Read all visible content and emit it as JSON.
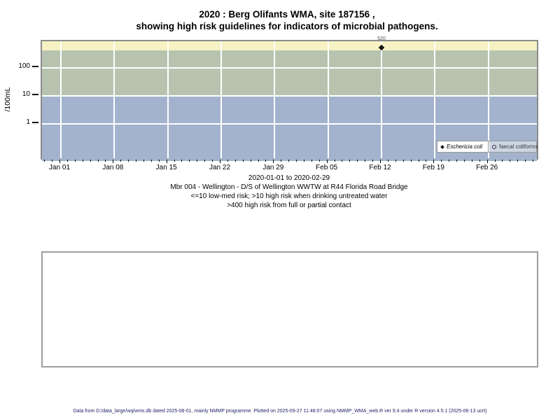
{
  "title": {
    "line1": "2020 : Berg Olifants WMA, site 187156 ,",
    "line2": "showing high risk guidelines for indicators of microbial pathogens."
  },
  "chart_data": {
    "type": "scatter",
    "y_scale": "log",
    "ylabel": "/100mL",
    "xlabel": "",
    "grid": true,
    "legend_position": "bottom-right",
    "x_range": [
      "2019-12-30",
      "2020-03-03"
    ],
    "x_tick_labels": [
      "Jan 01",
      "Jan 08",
      "Jan 15",
      "Jan 22",
      "Jan 29",
      "Feb 05",
      "Feb 12",
      "Feb 19",
      "Feb 26"
    ],
    "y_tick_labels": [
      "100",
      "10",
      "1"
    ],
    "y_tick_values": [
      100,
      10,
      1
    ],
    "series": [
      {
        "name": "Eschericia coli",
        "marker": "filled-diamond",
        "points": [
          {
            "date": "2020-02-12",
            "value": 520,
            "label": "520"
          }
        ]
      },
      {
        "name": "faecal coliforms",
        "marker": "open-circle",
        "points": []
      }
    ],
    "bands": [
      {
        "label": ">400 high risk from full or partial contact",
        "y_from": 400,
        "y_to": 900,
        "color": "#f7f2c4"
      },
      {
        "label": ">10 high risk when drinking untreated water",
        "y_from": 10,
        "y_to": 400,
        "color": "#b7c3af"
      },
      {
        "label": "<=10 low-med risk",
        "y_from": 0.04,
        "y_to": 10,
        "color": "#a3b3cd"
      }
    ]
  },
  "subtitle_lines": [
    "2020-01-01 to 2020-02-29",
    "Mbr 004 - Wellington - D/S of Wellington WWTW at R44 Florida Road Bridge",
    "<=10 low-med risk; >10 high risk when drinking untreated water",
    ">400 high risk from full or partial contact"
  ],
  "footer": "Data from D:/data_large/wq/wms.db dated 2025-08-01, mainly NMMP programme. Plotted on 2025-09-27 11:48:07 using NMMP_WMA_web.R ver 9.4 under R version 4.5.1 (2025-06-13 ucrt)"
}
